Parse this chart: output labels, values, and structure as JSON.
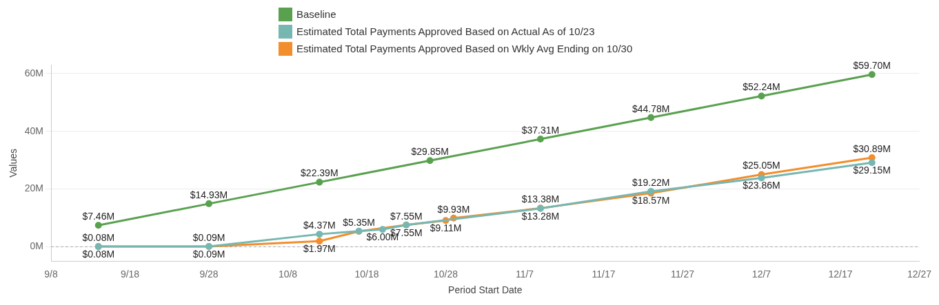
{
  "chart_data": {
    "type": "line",
    "xlabel": "Period Start Date",
    "ylabel": "Values",
    "xlim": [
      "--09-08",
      "--12-27"
    ],
    "xticks": [
      {
        "value": "--09-08",
        "label": "9/8"
      },
      {
        "value": "--09-18",
        "label": "9/18"
      },
      {
        "value": "--09-28",
        "label": "9/28"
      },
      {
        "value": "--10-08",
        "label": "10/8"
      },
      {
        "value": "--10-18",
        "label": "10/18"
      },
      {
        "value": "--10-28",
        "label": "10/28"
      },
      {
        "value": "--11-07",
        "label": "11/7"
      },
      {
        "value": "--11-17",
        "label": "11/17"
      },
      {
        "value": "--11-27",
        "label": "11/27"
      },
      {
        "value": "--12-07",
        "label": "12/7"
      },
      {
        "value": "--12-17",
        "label": "12/17"
      },
      {
        "value": "--12-27",
        "label": "12/27"
      }
    ],
    "ylim": [
      -5,
      63
    ],
    "yticks": [
      {
        "value": 0,
        "label": "0M"
      },
      {
        "value": 20,
        "label": "20M"
      },
      {
        "value": 40,
        "label": "40M"
      },
      {
        "value": 60,
        "label": "60M"
      }
    ],
    "grid": "y",
    "legend": "top",
    "marker": "circle",
    "line_style": "solid",
    "ref_lines": [
      {
        "axis": "y",
        "value": 0,
        "color": "#aaaaaa",
        "line_style": "dashed"
      }
    ],
    "series": [
      {
        "name": "Baseline",
        "color": "#59a14f",
        "x": [
          "--09-14",
          "--09-28",
          "--10-12",
          "--10-26",
          "--11-09",
          "--11-23",
          "--12-07",
          "--12-21"
        ],
        "values": [
          7.46,
          14.93,
          22.39,
          29.85,
          37.31,
          44.78,
          52.24,
          59.7
        ],
        "value_labels": [
          "$7.46M",
          "$14.93M",
          "$22.39M",
          "$29.85M",
          "$37.31M",
          "$44.78M",
          "$52.24M",
          "$59.70M"
        ]
      },
      {
        "name": "Estimated Total Payments Approved Based on Wkly Avg Ending on 10/30",
        "color": "#f28e2b",
        "x": [
          "--09-14",
          "--09-28",
          "--10-12",
          "--10-17",
          "--10-23",
          "--10-28",
          "--10-29",
          "--11-09",
          "--11-23",
          "--12-07",
          "--12-21"
        ],
        "values": [
          0.08,
          0.09,
          1.97,
          5.35,
          7.55,
          9.11,
          9.93,
          13.38,
          18.57,
          25.05,
          30.89
        ],
        "value_labels": [
          "$0.08M",
          "$0.09M",
          "$1.97M",
          "$5.35M",
          "$7.55M",
          "$9.11M",
          "$9.93M",
          "$13.38M",
          "$18.57M",
          "$25.05M",
          "$30.89M"
        ]
      },
      {
        "name": "Estimated Total Payments Approved Based on Actual As of 10/23",
        "color": "#76b7b2",
        "x": [
          "--09-14",
          "--09-28",
          "--10-12",
          "--10-17",
          "--10-20",
          "--10-23",
          "--11-09",
          "--11-23",
          "--12-07",
          "--12-21"
        ],
        "values": [
          0.08,
          0.09,
          4.37,
          5.4,
          6.0,
          7.55,
          13.28,
          19.22,
          23.86,
          29.15
        ],
        "value_labels": [
          "$0.08M",
          "$0.09M",
          "$4.37M",
          null,
          "$6.00M",
          "$7.55M",
          "$13.28M",
          "$19.22M",
          "$23.86M",
          "$29.15M"
        ]
      }
    ]
  }
}
